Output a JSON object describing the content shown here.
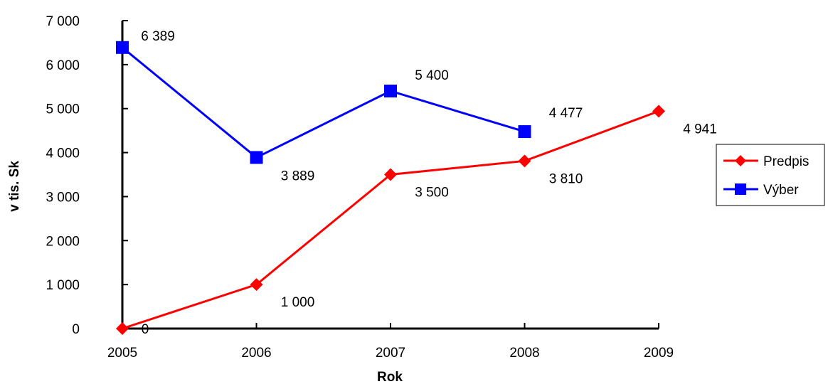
{
  "chart_data": {
    "type": "line",
    "title": "",
    "xlabel": "Rok",
    "ylabel": "v tis. Sk",
    "categories": [
      "2005",
      "2006",
      "2007",
      "2008",
      "2009"
    ],
    "ylim": [
      0,
      7000
    ],
    "y_ticks": [
      0,
      1000,
      2000,
      3000,
      4000,
      5000,
      6000,
      7000
    ],
    "y_tick_labels": [
      "0",
      "1 000",
      "2 000",
      "3 000",
      "4 000",
      "5 000",
      "6 000",
      "7 000"
    ],
    "grid": false,
    "legend_position": "right",
    "series": [
      {
        "name": "Predpis",
        "color": "#ff0000",
        "marker": "diamond",
        "values": [
          0,
          1000,
          3500,
          3810,
          4941
        ],
        "labels": [
          "0",
          "1 000",
          "3 500",
          "3 810",
          "4 941"
        ]
      },
      {
        "name": "Výber",
        "color": "#0000ff",
        "marker": "square",
        "values": [
          6389,
          3889,
          5400,
          4477,
          null
        ],
        "labels": [
          "6 389",
          "3 889",
          "5 400",
          "4 477",
          null
        ]
      }
    ]
  }
}
